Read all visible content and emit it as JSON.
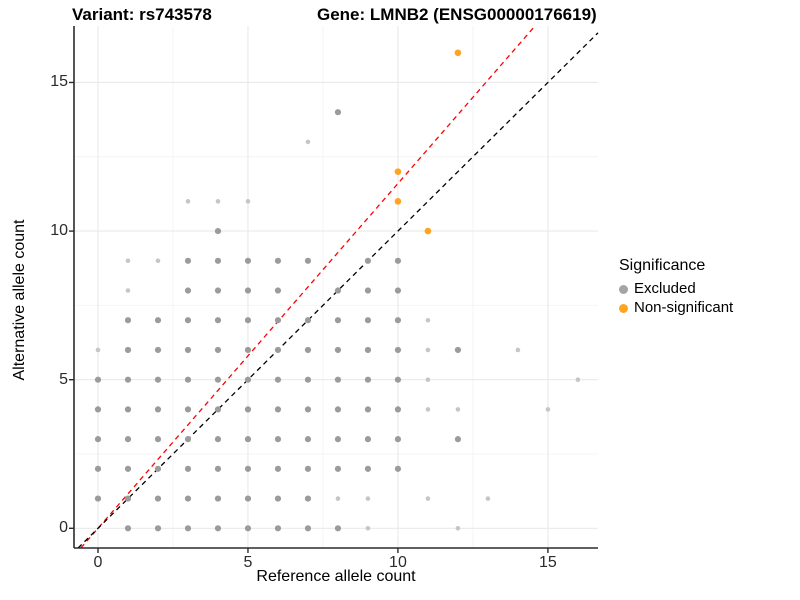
{
  "header": {
    "variant_title": "Variant: rs743578",
    "gene_title": "Gene: LMNB2 (ENSG00000176619)"
  },
  "legend": {
    "title": "Significance",
    "position": "right",
    "items": [
      {
        "label": "Excluded",
        "color": "#A4A4A4"
      },
      {
        "label": "Non-significant",
        "color": "#FFA320"
      }
    ]
  },
  "chart_data": {
    "type": "scatter",
    "title": "Variant: rs743578   Gene: LMNB2 (ENSG00000176619)",
    "xlabel": "Reference allele count",
    "ylabel": "Alternative allele count",
    "xlim": [
      -0.8,
      16.67
    ],
    "ylim": [
      -0.663,
      16.9
    ],
    "x_ticks": [
      0,
      5,
      10,
      15
    ],
    "y_ticks": [
      0,
      5,
      10,
      15
    ],
    "x_minor_gridlines": [
      2.5,
      7.5,
      12.5
    ],
    "y_minor_gridlines": [
      2.5,
      7.5,
      12.5
    ],
    "grid": "on",
    "legend_position": "right",
    "colors": {
      "excluded_dark": "#9B9B9B",
      "excluded_light": "#C6C6C6",
      "non_significant": "#FFA320",
      "identity_line": "#000000",
      "fit_line": "#FF0000",
      "grid_major": "#E9E9E9",
      "grid_minor": "#F4F4F4",
      "axis_line": "#2B2B2B"
    },
    "lines": [
      {
        "name": "fitted-proportion-line",
        "slope": 1.16,
        "intercept": 0,
        "color_key": "fit_line",
        "style": "dashed"
      },
      {
        "name": "identity-line",
        "slope": 1,
        "intercept": 0,
        "color_key": "identity_line",
        "style": "dashed"
      }
    ],
    "series": [
      {
        "name": "Excluded",
        "points": [
          [
            1,
            0,
            "d"
          ],
          [
            2,
            0,
            "d"
          ],
          [
            3,
            0,
            "d"
          ],
          [
            4,
            0,
            "d"
          ],
          [
            5,
            0,
            "d"
          ],
          [
            6,
            0,
            "d"
          ],
          [
            7,
            0,
            "d"
          ],
          [
            8,
            0,
            "d"
          ],
          [
            9,
            0,
            "l"
          ],
          [
            12,
            0,
            "l"
          ],
          [
            0,
            1,
            "d"
          ],
          [
            1,
            1,
            "d"
          ],
          [
            2,
            1,
            "d"
          ],
          [
            3,
            1,
            "d"
          ],
          [
            4,
            1,
            "d"
          ],
          [
            5,
            1,
            "d"
          ],
          [
            6,
            1,
            "d"
          ],
          [
            7,
            1,
            "d"
          ],
          [
            8,
            1,
            "l"
          ],
          [
            9,
            1,
            "l"
          ],
          [
            11,
            1,
            "l"
          ],
          [
            13,
            1,
            "l"
          ],
          [
            0,
            2,
            "d"
          ],
          [
            1,
            2,
            "d"
          ],
          [
            2,
            2,
            "d"
          ],
          [
            3,
            2,
            "d"
          ],
          [
            4,
            2,
            "d"
          ],
          [
            5,
            2,
            "d"
          ],
          [
            6,
            2,
            "d"
          ],
          [
            7,
            2,
            "d"
          ],
          [
            8,
            2,
            "d"
          ],
          [
            9,
            2,
            "d"
          ],
          [
            10,
            2,
            "d"
          ],
          [
            0,
            3,
            "d"
          ],
          [
            1,
            3,
            "d"
          ],
          [
            2,
            3,
            "d"
          ],
          [
            3,
            3,
            "d"
          ],
          [
            4,
            3,
            "d"
          ],
          [
            5,
            3,
            "d"
          ],
          [
            6,
            3,
            "d"
          ],
          [
            7,
            3,
            "d"
          ],
          [
            8,
            3,
            "d"
          ],
          [
            9,
            3,
            "d"
          ],
          [
            10,
            3,
            "d"
          ],
          [
            12,
            3,
            "d"
          ],
          [
            0,
            4,
            "d"
          ],
          [
            1,
            4,
            "d"
          ],
          [
            2,
            4,
            "d"
          ],
          [
            3,
            4,
            "d"
          ],
          [
            4,
            4,
            "d"
          ],
          [
            5,
            4,
            "d"
          ],
          [
            6,
            4,
            "d"
          ],
          [
            7,
            4,
            "d"
          ],
          [
            8,
            4,
            "d"
          ],
          [
            9,
            4,
            "d"
          ],
          [
            10,
            4,
            "d"
          ],
          [
            11,
            4,
            "l"
          ],
          [
            12,
            4,
            "l"
          ],
          [
            15,
            4,
            "l"
          ],
          [
            0,
            5,
            "d"
          ],
          [
            1,
            5,
            "d"
          ],
          [
            2,
            5,
            "d"
          ],
          [
            3,
            5,
            "d"
          ],
          [
            4,
            5,
            "d"
          ],
          [
            5,
            5,
            "d"
          ],
          [
            6,
            5,
            "d"
          ],
          [
            7,
            5,
            "d"
          ],
          [
            8,
            5,
            "d"
          ],
          [
            9,
            5,
            "d"
          ],
          [
            10,
            5,
            "d"
          ],
          [
            11,
            5,
            "l"
          ],
          [
            16,
            5,
            "l"
          ],
          [
            0,
            6,
            "l"
          ],
          [
            1,
            6,
            "d"
          ],
          [
            2,
            6,
            "d"
          ],
          [
            3,
            6,
            "d"
          ],
          [
            4,
            6,
            "d"
          ],
          [
            5,
            6,
            "d"
          ],
          [
            6,
            6,
            "d"
          ],
          [
            7,
            6,
            "d"
          ],
          [
            8,
            6,
            "d"
          ],
          [
            9,
            6,
            "d"
          ],
          [
            10,
            6,
            "d"
          ],
          [
            11,
            6,
            "l"
          ],
          [
            12,
            6,
            "d"
          ],
          [
            14,
            6,
            "l"
          ],
          [
            1,
            7,
            "d"
          ],
          [
            2,
            7,
            "d"
          ],
          [
            3,
            7,
            "d"
          ],
          [
            4,
            7,
            "d"
          ],
          [
            5,
            7,
            "d"
          ],
          [
            6,
            7,
            "d"
          ],
          [
            7,
            7,
            "d"
          ],
          [
            8,
            7,
            "d"
          ],
          [
            9,
            7,
            "d"
          ],
          [
            10,
            7,
            "d"
          ],
          [
            11,
            7,
            "l"
          ],
          [
            1,
            8,
            "l"
          ],
          [
            3,
            8,
            "d"
          ],
          [
            4,
            8,
            "d"
          ],
          [
            5,
            8,
            "d"
          ],
          [
            6,
            8,
            "d"
          ],
          [
            8,
            8,
            "d"
          ],
          [
            9,
            8,
            "d"
          ],
          [
            10,
            8,
            "d"
          ],
          [
            1,
            9,
            "l"
          ],
          [
            2,
            9,
            "l"
          ],
          [
            3,
            9,
            "d"
          ],
          [
            4,
            9,
            "d"
          ],
          [
            5,
            9,
            "d"
          ],
          [
            6,
            9,
            "d"
          ],
          [
            7,
            9,
            "d"
          ],
          [
            9,
            9,
            "d"
          ],
          [
            10,
            9,
            "d"
          ],
          [
            4,
            10,
            "d"
          ],
          [
            3,
            11,
            "l"
          ],
          [
            4,
            11,
            "l"
          ],
          [
            5,
            11,
            "l"
          ],
          [
            7,
            13,
            "l"
          ],
          [
            8,
            14,
            "d"
          ]
        ]
      },
      {
        "name": "Non-significant",
        "points": [
          [
            11,
            10
          ],
          [
            10,
            11
          ],
          [
            10,
            12
          ],
          [
            12,
            16
          ]
        ]
      }
    ]
  }
}
